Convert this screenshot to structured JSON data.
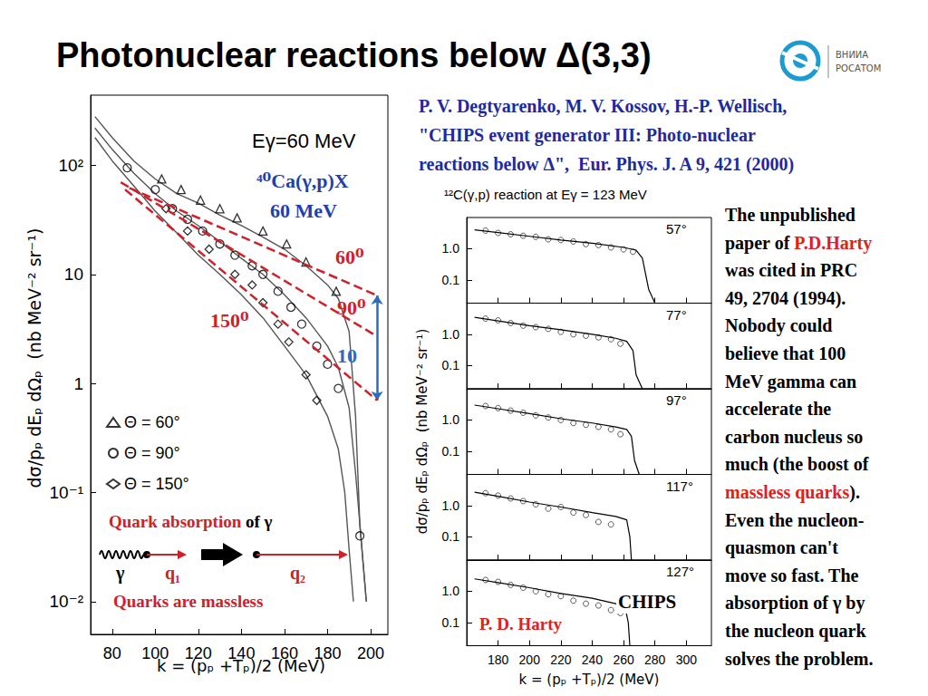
{
  "title": "Photonuclear reactions below Δ(3,3)",
  "logo": [
    "ВНИИА",
    "РОСАТОМ"
  ],
  "citation": [
    "P. V. Degtyarenko, M. V. Kossov, H.-P. Wellisch,",
    "\"CHIPS event generator III: Photo-nuclear",
    "reactions below Δ\",  Eur. Phys. J. A 9, 421 (2000)"
  ],
  "note": [
    [
      "The unpublished"
    ],
    [
      "paper of ",
      {
        "text": "P.D.Harty",
        "color": "#e0201b"
      }
    ],
    [
      "was cited in PRC"
    ],
    [
      "49, 2704 (1994)."
    ],
    [
      "Nobody could"
    ],
    [
      "believe that 100"
    ],
    [
      "MeV gamma can"
    ],
    [
      "accelerate the"
    ],
    [
      "carbon nucleus so"
    ],
    [
      "much (the boost of"
    ],
    [
      {
        "text": "massless quarks",
        "color": "#e0201b"
      },
      ")."
    ],
    [
      "Even the nucleon-"
    ],
    [
      "quasmon can't"
    ],
    [
      "move so fast. The"
    ],
    [
      "absorption of γ by"
    ],
    [
      "the nucleon quark"
    ],
    [
      "solves the problem."
    ]
  ],
  "diagram": {
    "heading": [
      {
        "text": "Quark absorption",
        "color": "#d0202a"
      },
      {
        "text": "of γ",
        "color": "#000000"
      }
    ],
    "photon": "γ",
    "q1": "q₁",
    "q2": "q₂",
    "caption": "Quarks are massless",
    "color": "#d0202a"
  },
  "chart_data": [
    {
      "type": "scatter",
      "title": "Eγ=60 MeV",
      "annotations": [
        "⁴⁰Ca(γ,p)X",
        "60 MeV"
      ],
      "x_label": "k = (pₚ +Tₚ)/2 (MeV)",
      "y_label": "dσ/pₚ dEₚ dΩₚ  (nb MeV⁻² sr⁻¹)",
      "log": "y",
      "grid": false,
      "legend": "lower left",
      "xlim": [
        70,
        208
      ],
      "xticks": [
        80,
        100,
        120,
        140,
        160,
        180,
        200
      ],
      "ylim": [
        0.005,
        440
      ],
      "yticks": [
        {
          "value": 0.01,
          "label": "10⁻²"
        },
        {
          "value": 0.1,
          "label": "10⁻¹"
        },
        1,
        10,
        {
          "value": 100,
          "label": "10²"
        }
      ],
      "series": [
        {
          "name": "Θ = 60°",
          "type": "scatter",
          "marker": "triangle",
          "color": "#000000",
          "x": [
            103,
            112,
            121,
            130,
            138,
            150,
            161,
            170,
            184
          ],
          "values": [
            75,
            60,
            48,
            40,
            33,
            25,
            19,
            13,
            7
          ]
        },
        {
          "name": "Θ = 90°",
          "type": "scatter",
          "marker": "circle",
          "color": "#000000",
          "x": [
            87,
            100,
            108,
            115,
            122,
            130,
            137,
            145,
            150,
            157,
            163,
            168,
            175,
            180,
            185,
            195
          ],
          "values": [
            95,
            60,
            40,
            32,
            25,
            19,
            15,
            12,
            10,
            7,
            5,
            3.5,
            2.2,
            1.5,
            0.9,
            0.04
          ]
        },
        {
          "name": "Θ = 150°",
          "type": "scatter",
          "marker": "diamond",
          "color": "#000000",
          "x": [
            105,
            115,
            125,
            137,
            145,
            150,
            157,
            162,
            170,
            175
          ],
          "values": [
            40,
            25,
            17,
            10,
            8,
            5.5,
            3.5,
            2.4,
            1.2,
            0.7
          ]
        },
        {
          "type": "line",
          "color": "#555555",
          "x": [
            72,
            80,
            90,
            100,
            110,
            120,
            130,
            140,
            150,
            160,
            170,
            180,
            185,
            190,
            193,
            195,
            198
          ],
          "values": [
            280,
            180,
            110,
            75,
            55,
            45,
            35,
            28,
            22,
            17,
            12,
            8,
            6,
            3,
            0.5,
            0.05,
            0.01
          ]
        },
        {
          "type": "line",
          "color": "#555555",
          "x": [
            72,
            80,
            90,
            100,
            110,
            120,
            130,
            140,
            150,
            160,
            170,
            180,
            185,
            190,
            193,
            196,
            198
          ],
          "values": [
            220,
            140,
            85,
            55,
            38,
            28,
            20,
            14,
            10,
            6.5,
            4,
            2.2,
            1.4,
            0.6,
            0.15,
            0.03,
            0.01
          ]
        },
        {
          "type": "line",
          "color": "#555555",
          "x": [
            72,
            80,
            90,
            100,
            110,
            120,
            130,
            140,
            150,
            160,
            170,
            180,
            185,
            188,
            190,
            192
          ],
          "values": [
            180,
            110,
            65,
            38,
            24,
            15,
            10,
            6.5,
            4,
            2.2,
            1.2,
            0.5,
            0.25,
            0.1,
            0.03,
            0.01
          ]
        }
      ],
      "guides": [
        {
          "label": "60⁰",
          "color": "#d0202a",
          "line_style": "dashed",
          "x": [
            88,
            203
          ],
          "values": [
            62,
            6.4
          ]
        },
        {
          "label": "90⁰",
          "color": "#d0202a",
          "line_style": "dashed",
          "x": [
            84,
            203
          ],
          "values": [
            70,
            2.7
          ]
        },
        {
          "label": "150⁰",
          "color": "#d0202a",
          "line_style": "dashed",
          "x": [
            86,
            203
          ],
          "values": [
            60,
            0.7
          ]
        }
      ],
      "arrow": {
        "label": "10",
        "color": "#2a6ebb",
        "x": [
          203,
          203
        ],
        "values": [
          6.4,
          0.7
        ]
      }
    },
    {
      "type": "line",
      "title": "¹²C(γ,p) reaction at Eγ = 123 MeV",
      "x_label": "k = (pₚ +Tₚ)/2 (MeV)",
      "y_label": "dσ/pₚ dEₚ dΩₚ  (nb MeV⁻² sr⁻¹)",
      "log": "y",
      "grid": false,
      "xlim": [
        160,
        316
      ],
      "xticks": [
        180,
        200,
        220,
        240,
        260,
        280,
        300
      ],
      "ylim": [
        0.018,
        10
      ],
      "yticks": [
        0.1,
        {
          "value": 1,
          "label": "1.0"
        }
      ],
      "panel_labels": [
        "57°",
        "77°",
        "97°",
        "117°",
        "127°"
      ],
      "series": [
        {
          "name": "CHIPS",
          "type": "line",
          "color": "#000000",
          "panels": [
            {
              "x": [
                165,
                180,
                200,
                220,
                240,
                260,
                268,
                272,
                276,
                280
              ],
              "values": [
                4.0,
                3.3,
                2.5,
                1.9,
                1.5,
                1.1,
                0.9,
                0.5,
                0.05,
                0.018
              ]
            },
            {
              "x": [
                165,
                180,
                200,
                220,
                240,
                255,
                262,
                266,
                268,
                272
              ],
              "values": [
                3.5,
                2.7,
                1.9,
                1.4,
                1.0,
                0.75,
                0.6,
                0.3,
                0.05,
                0.018
              ]
            },
            {
              "x": [
                165,
                180,
                200,
                220,
                240,
                255,
                262,
                265,
                267,
                270
              ],
              "values": [
                3.0,
                2.3,
                1.6,
                1.1,
                0.8,
                0.6,
                0.5,
                0.3,
                0.05,
                0.018
              ]
            },
            {
              "x": [
                165,
                180,
                200,
                220,
                240,
                255,
                262,
                264,
                265
              ],
              "values": [
                2.7,
                2.0,
                1.3,
                0.9,
                0.6,
                0.45,
                0.35,
                0.1,
                0.018
              ]
            },
            {
              "x": [
                165,
                180,
                200,
                220,
                240,
                255,
                261,
                263,
                264
              ],
              "values": [
                2.5,
                1.9,
                1.3,
                0.85,
                0.6,
                0.4,
                0.3,
                0.1,
                0.018
              ]
            }
          ]
        },
        {
          "name": "P. D. Harty",
          "type": "scatter",
          "marker": "circle",
          "color": "#333333",
          "panels": [
            {
              "x": [
                172,
                180,
                188,
                196,
                204,
                212,
                220,
                228,
                236,
                244,
                252,
                260,
                266
              ],
              "values": [
                3.8,
                3.2,
                2.9,
                2.6,
                2.4,
                2.0,
                1.9,
                1.7,
                1.4,
                1.3,
                1.1,
                0.95,
                0.8
              ]
            },
            {
              "x": [
                172,
                180,
                188,
                196,
                204,
                212,
                220,
                228,
                236,
                244,
                252,
                258
              ],
              "values": [
                3.2,
                2.8,
                2.3,
                1.9,
                1.7,
                1.5,
                1.2,
                1.0,
                0.9,
                0.8,
                0.7,
                0.5
              ]
            },
            {
              "x": [
                172,
                180,
                188,
                196,
                204,
                212,
                220,
                228,
                236,
                244,
                252,
                258
              ],
              "values": [
                2.8,
                2.4,
                2.0,
                1.7,
                1.4,
                1.2,
                1.0,
                0.8,
                0.7,
                0.6,
                0.5,
                0.35
              ]
            },
            {
              "x": [
                172,
                180,
                188,
                196,
                204,
                212,
                220,
                228,
                236,
                244,
                252
              ],
              "values": [
                2.5,
                2.1,
                1.7,
                1.4,
                1.1,
                0.8,
                0.9,
                0.6,
                0.5,
                0.3,
                0.25
              ]
            },
            {
              "x": [
                172,
                180,
                188,
                196,
                204,
                212,
                220,
                228,
                236,
                244,
                252,
                258
              ],
              "values": [
                2.3,
                2.0,
                1.6,
                1.3,
                1.0,
                0.8,
                0.7,
                0.5,
                0.4,
                0.35,
                0.25,
                0.2
              ]
            }
          ]
        }
      ]
    }
  ]
}
